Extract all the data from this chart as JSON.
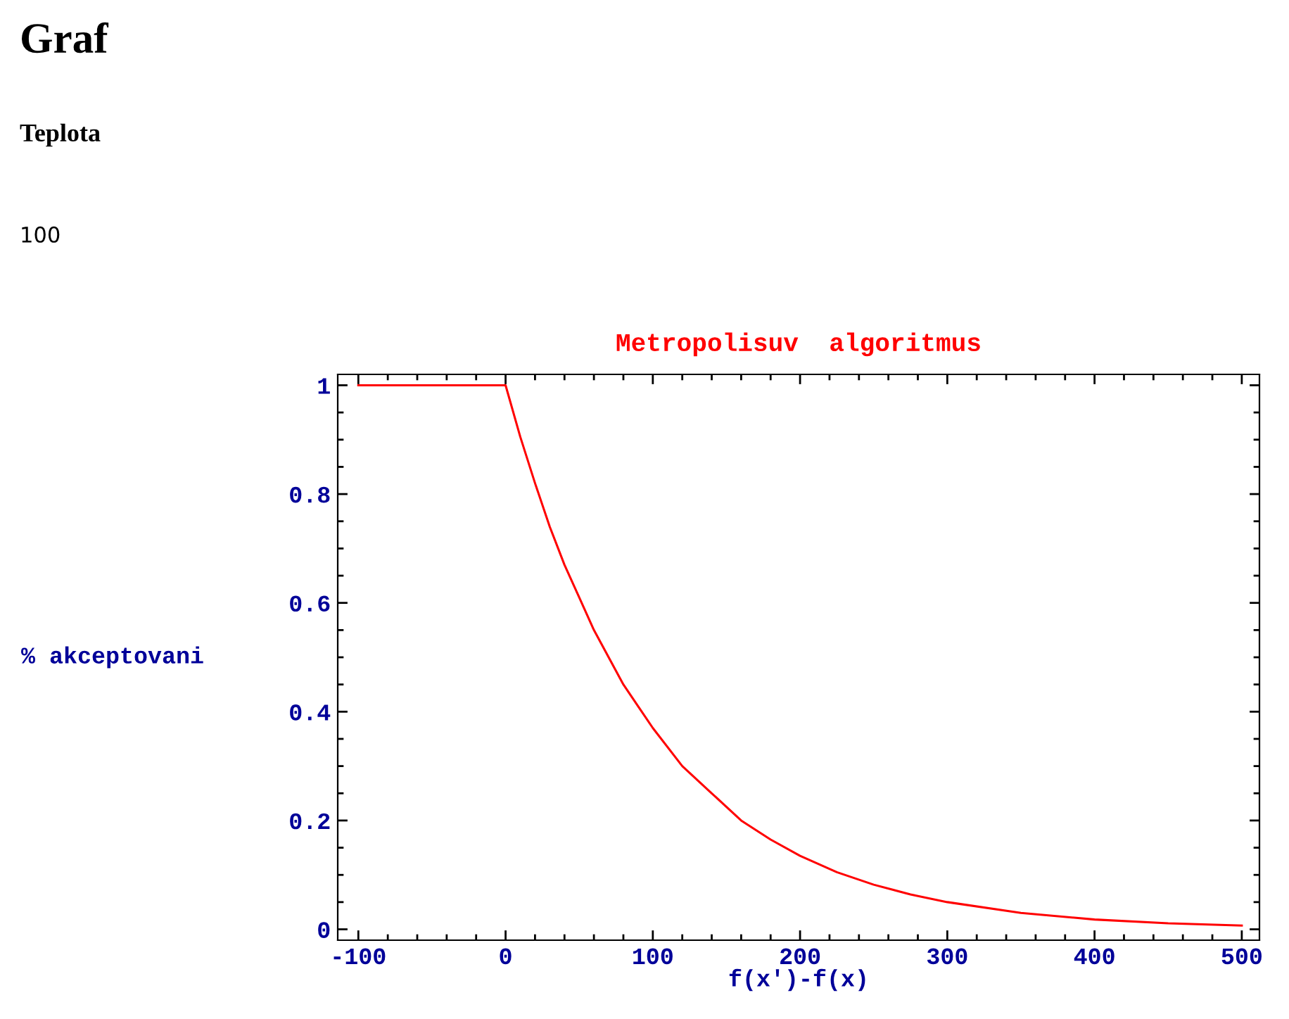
{
  "chart_data": {
    "type": "line",
    "title": "Graf",
    "subtitle": "Teplota",
    "annotations": [
      "100",
      "Metropolisuv  algoritmus"
    ],
    "xlabel": "f(x')-f(x)",
    "ylabel": "% akceptovani",
    "series": [
      {
        "color": "#ff0000",
        "x": [
          -100,
          0,
          10,
          20,
          30,
          40,
          50,
          60,
          70,
          80,
          90,
          100,
          120,
          140,
          160,
          180,
          200,
          225,
          250,
          275,
          300,
          350,
          400,
          450,
          500
        ],
        "values": [
          1,
          1,
          0.905,
          0.82,
          0.74,
          0.67,
          0.61,
          0.55,
          0.5,
          0.45,
          0.41,
          0.37,
          0.3,
          0.25,
          0.2,
          0.165,
          0.135,
          0.105,
          0.082,
          0.064,
          0.05,
          0.03,
          0.018,
          0.011,
          0.007
        ]
      }
    ],
    "xlim": [
      -114,
      512
    ],
    "ylim": [
      -0.02,
      1.02
    ],
    "xticks": [
      -100,
      {
        "value": -80,
        "label": null
      },
      {
        "value": -60,
        "label": null
      },
      {
        "value": -40,
        "label": null
      },
      {
        "value": -20,
        "label": null
      },
      0,
      {
        "value": 20,
        "label": null
      },
      {
        "value": 40,
        "label": null
      },
      {
        "value": 60,
        "label": null
      },
      {
        "value": 80,
        "label": null
      },
      100,
      {
        "value": 120,
        "label": null
      },
      {
        "value": 140,
        "label": null
      },
      {
        "value": 160,
        "label": null
      },
      {
        "value": 180,
        "label": null
      },
      200,
      {
        "value": 220,
        "label": null
      },
      {
        "value": 240,
        "label": null
      },
      {
        "value": 260,
        "label": null
      },
      {
        "value": 280,
        "label": null
      },
      300,
      {
        "value": 320,
        "label": null
      },
      {
        "value": 340,
        "label": null
      },
      {
        "value": 360,
        "label": null
      },
      {
        "value": 380,
        "label": null
      },
      400,
      {
        "value": 420,
        "label": null
      },
      {
        "value": 440,
        "label": null
      },
      {
        "value": 460,
        "label": null
      },
      {
        "value": 480,
        "label": null
      },
      500
    ],
    "yticks": [
      0,
      {
        "value": 0.05,
        "label": null
      },
      {
        "value": 0.1,
        "label": null
      },
      {
        "value": 0.15,
        "label": null
      },
      0.2,
      {
        "value": 0.25,
        "label": null
      },
      {
        "value": 0.3,
        "label": null
      },
      {
        "value": 0.35,
        "label": null
      },
      0.4,
      {
        "value": 0.45,
        "label": null
      },
      {
        "value": 0.5,
        "label": null
      },
      {
        "value": 0.55,
        "label": null
      },
      0.6,
      {
        "value": 0.65,
        "label": null
      },
      {
        "value": 0.7,
        "label": null
      },
      {
        "value": 0.75,
        "label": null
      },
      0.8,
      {
        "value": 0.85,
        "label": null
      },
      {
        "value": 0.9,
        "label": null
      },
      {
        "value": 0.95,
        "label": null
      },
      1
    ],
    "grid": false,
    "legend": false,
    "marker": "none",
    "line_style": "solid"
  }
}
